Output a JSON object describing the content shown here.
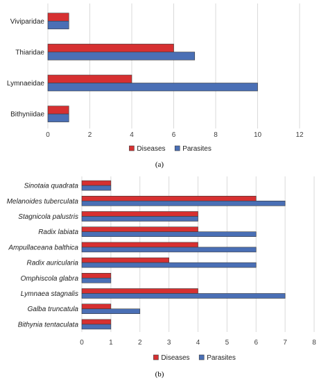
{
  "chart_data": [
    {
      "type": "bar",
      "orientation": "horizontal",
      "panel_label": "(a)",
      "categories": [
        "Viviparidae",
        "Thiaridae",
        "Lymnaeidae",
        "Bithyniidae"
      ],
      "series": [
        {
          "name": "Diseases",
          "values": [
            1,
            6,
            4,
            1
          ]
        },
        {
          "name": "Parasites",
          "values": [
            1,
            7,
            10,
            1
          ]
        }
      ],
      "xlim": [
        0,
        12
      ],
      "xticks": [
        0,
        2,
        4,
        6,
        8,
        10,
        12
      ],
      "grid": true,
      "legend_position": "bottom",
      "italic_labels": false,
      "colors": {
        "Diseases": "#d63031",
        "Parasites": "#4a6fb5"
      }
    },
    {
      "type": "bar",
      "orientation": "horizontal",
      "panel_label": "(b)",
      "categories": [
        "Sinotaia quadrata",
        "Melanoides tuberculata",
        "Stagnicola palustris",
        "Radix labiata",
        "Ampullaceana balthica",
        "Radix auricularia",
        "Omphiscola glabra",
        "Lymnaea stagnalis",
        "Galba truncatula",
        "Bithynia tentaculata"
      ],
      "series": [
        {
          "name": "Diseases",
          "values": [
            1,
            6,
            4,
            4,
            4,
            3,
            1,
            4,
            1,
            1
          ]
        },
        {
          "name": "Parasites",
          "values": [
            1,
            7,
            4,
            6,
            6,
            6,
            1,
            7,
            2,
            1
          ]
        }
      ],
      "xlim": [
        0,
        8
      ],
      "xticks": [
        0,
        1,
        2,
        3,
        4,
        5,
        6,
        7,
        8
      ],
      "grid": true,
      "legend_position": "bottom",
      "italic_labels": true,
      "colors": {
        "Diseases": "#d63031",
        "Parasites": "#4a6fb5"
      }
    }
  ]
}
